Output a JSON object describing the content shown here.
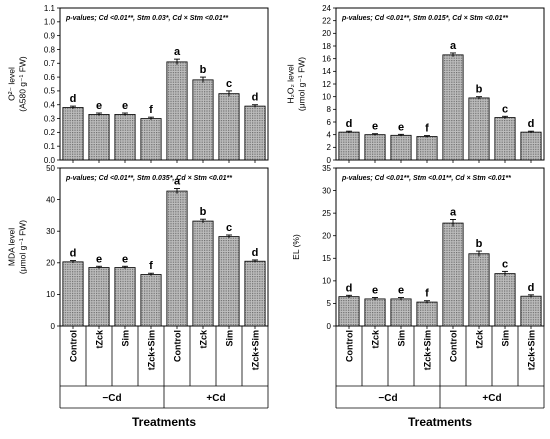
{
  "colors": {
    "bar_fill": "#bdbdbd",
    "bar_pattern_dot": "#6e6e6e",
    "axis": "#000000"
  },
  "chart_data": [
    {
      "type": "bar",
      "panel": "top-left",
      "ylabel_lines": [
        "O²⁻ level",
        "(A580 g⁻¹ FW)"
      ],
      "annotation": "p-values; Cd <0.01**, Stm 0.03*, Cd × Stm <0.01**",
      "categories": [
        "Control",
        "tZck",
        "Sim",
        "tZck+Sim",
        "Control",
        "tZck",
        "Sim",
        "tZck+Sim"
      ],
      "values": [
        0.38,
        0.33,
        0.33,
        0.3,
        0.71,
        0.58,
        0.48,
        0.39
      ],
      "errors": [
        0.01,
        0.01,
        0.01,
        0.01,
        0.02,
        0.02,
        0.02,
        0.01
      ],
      "letters": [
        "d",
        "e",
        "e",
        "f",
        "a",
        "b",
        "c",
        "d"
      ],
      "ylim": [
        0,
        1.1
      ],
      "yticks": [
        "0.0",
        "0.1",
        "0.2",
        "0.3",
        "0.4",
        "0.5",
        "0.6",
        "0.7",
        "0.8",
        "0.9",
        "1.0",
        "1.1"
      ],
      "ytick_values": [
        0,
        0.1,
        0.2,
        0.3,
        0.4,
        0.5,
        0.6,
        0.7,
        0.8,
        0.9,
        1.0,
        1.1
      ]
    },
    {
      "type": "bar",
      "panel": "top-right",
      "ylabel_lines": [
        "H₂O₂ level",
        "(μmol g⁻¹ FW)"
      ],
      "annotation": "p-values; Cd <0.01**, Stm 0.015*, Cd × Stm <0.01**",
      "categories": [
        "Control",
        "tZck",
        "Sim",
        "tZck+Sim",
        "Control",
        "tZck",
        "Sim",
        "tZck+Sim"
      ],
      "values": [
        4.4,
        4.0,
        3.9,
        3.7,
        16.6,
        9.8,
        6.7,
        4.4
      ],
      "errors": [
        0.15,
        0.15,
        0.15,
        0.15,
        0.3,
        0.2,
        0.2,
        0.15
      ],
      "letters": [
        "d",
        "e",
        "e",
        "f",
        "a",
        "b",
        "c",
        "d"
      ],
      "ylim": [
        0,
        24
      ],
      "yticks": [
        "0",
        "2",
        "4",
        "6",
        "8",
        "10",
        "12",
        "14",
        "16",
        "18",
        "20",
        "22",
        "24"
      ],
      "ytick_values": [
        0,
        2,
        4,
        6,
        8,
        10,
        12,
        14,
        16,
        18,
        20,
        22,
        24
      ]
    },
    {
      "type": "bar",
      "panel": "bottom-left",
      "ylabel_lines": [
        "MDA level",
        "(μmol g⁻¹ FW)"
      ],
      "annotation": "p-values; Cd <0.01**, Stm 0.035*, Cd × Stm <0.01**",
      "categories": [
        "Control",
        "tZck",
        "Sim",
        "tZck+Sim",
        "Control",
        "tZck",
        "Sim",
        "tZck+Sim"
      ],
      "values": [
        20.3,
        18.5,
        18.5,
        16.3,
        42.7,
        33.2,
        28.3,
        20.5
      ],
      "errors": [
        0.4,
        0.4,
        0.4,
        0.4,
        0.8,
        0.6,
        0.5,
        0.4
      ],
      "letters": [
        "d",
        "e",
        "e",
        "f",
        "a",
        "b",
        "c",
        "d"
      ],
      "ylim": [
        0,
        50
      ],
      "yticks": [
        "0",
        "10",
        "20",
        "30",
        "40",
        "50"
      ],
      "ytick_values": [
        0,
        10,
        20,
        30,
        40,
        50
      ]
    },
    {
      "type": "bar",
      "panel": "bottom-right",
      "ylabel_lines": [
        "EL (%)"
      ],
      "annotation": "p-values; Cd <0.01**, Stm <0.01**, Cd × Stm <0.01**",
      "categories": [
        "Control",
        "tZck",
        "Sim",
        "tZck+Sim",
        "Control",
        "tZck",
        "Sim",
        "tZck+Sim"
      ],
      "values": [
        6.5,
        6.0,
        6.0,
        5.3,
        22.8,
        16.0,
        11.6,
        6.6
      ],
      "errors": [
        0.3,
        0.3,
        0.3,
        0.3,
        0.8,
        0.6,
        0.5,
        0.3
      ],
      "letters": [
        "d",
        "e",
        "e",
        "f",
        "a",
        "b",
        "c",
        "d"
      ],
      "ylim": [
        0,
        35
      ],
      "yticks": [
        "0",
        "5",
        "10",
        "15",
        "20",
        "25",
        "30",
        "35"
      ],
      "ytick_values": [
        0,
        5,
        10,
        15,
        20,
        25,
        30,
        35
      ]
    }
  ],
  "groups": [
    {
      "label": "−Cd",
      "first": 0,
      "last": 3
    },
    {
      "label": "+Cd",
      "first": 4,
      "last": 7
    }
  ],
  "xlabel": "Treatments"
}
